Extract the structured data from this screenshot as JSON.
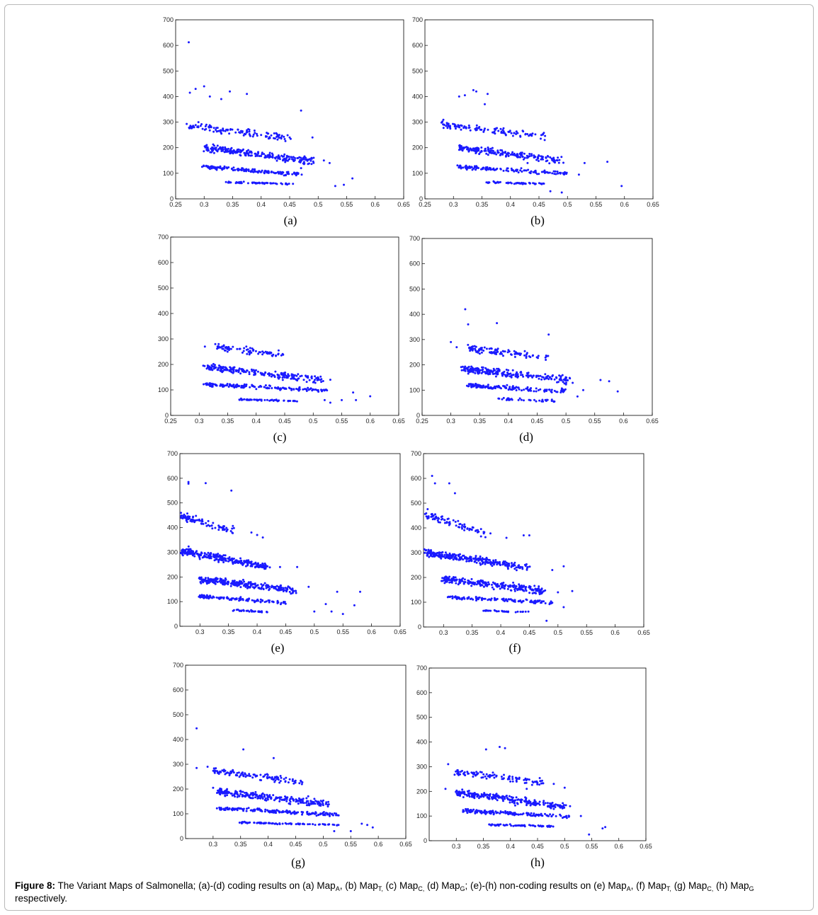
{
  "chart_data": [
    {
      "id": "a",
      "label": "(a)",
      "type": "scatter",
      "xlim": [
        0.25,
        0.65
      ],
      "ylim": [
        0,
        700
      ],
      "xticks": [
        "0.25",
        "0.3",
        "0.35",
        "0.4",
        "0.45",
        "0.5",
        "0.55",
        "0.6",
        "0.65"
      ],
      "yticks": [
        "0",
        "100",
        "200",
        "300",
        "400",
        "500",
        "600",
        "700"
      ],
      "bands": [
        {
          "x": [
            0.3,
            0.47
          ],
          "y": [
            125,
            95
          ],
          "n": 150,
          "spread": 7
        },
        {
          "x": [
            0.3,
            0.49
          ],
          "y": [
            200,
            145
          ],
          "n": 230,
          "spread": 14
        },
        {
          "x": [
            0.27,
            0.45
          ],
          "y": [
            285,
            240
          ],
          "n": 120,
          "spread": 13
        },
        {
          "x": [
            0.34,
            0.46
          ],
          "y": [
            65,
            58
          ],
          "n": 60,
          "spread": 3
        }
      ],
      "points": [
        [
          0.273,
          612
        ],
        [
          0.275,
          415
        ],
        [
          0.285,
          430
        ],
        [
          0.3,
          440
        ],
        [
          0.31,
          400
        ],
        [
          0.33,
          390
        ],
        [
          0.345,
          420
        ],
        [
          0.375,
          410
        ],
        [
          0.47,
          345
        ],
        [
          0.51,
          150
        ],
        [
          0.52,
          140
        ],
        [
          0.53,
          50
        ],
        [
          0.545,
          55
        ],
        [
          0.56,
          80
        ],
        [
          0.49,
          240
        ],
        [
          0.45,
          240
        ],
        [
          0.47,
          120
        ],
        [
          0.29,
          300
        ]
      ]
    },
    {
      "id": "b",
      "label": "(b)",
      "type": "scatter",
      "xlim": [
        0.25,
        0.65
      ],
      "ylim": [
        0,
        700
      ],
      "xticks": [
        "0.25",
        "0.3",
        "0.35",
        "0.4",
        "0.45",
        "0.5",
        "0.55",
        "0.6",
        "0.65"
      ],
      "yticks": [
        "0",
        "100",
        "200",
        "300",
        "400",
        "500",
        "600",
        "700"
      ],
      "bands": [
        {
          "x": [
            0.31,
            0.5
          ],
          "y": [
            125,
            98
          ],
          "n": 140,
          "spread": 7
        },
        {
          "x": [
            0.31,
            0.49
          ],
          "y": [
            200,
            150
          ],
          "n": 200,
          "spread": 13
        },
        {
          "x": [
            0.28,
            0.46
          ],
          "y": [
            290,
            245
          ],
          "n": 110,
          "spread": 13
        },
        {
          "x": [
            0.36,
            0.46
          ],
          "y": [
            65,
            58
          ],
          "n": 50,
          "spread": 3
        }
      ],
      "points": [
        [
          0.31,
          400
        ],
        [
          0.32,
          405
        ],
        [
          0.335,
          425
        ],
        [
          0.34,
          420
        ],
        [
          0.36,
          410
        ],
        [
          0.355,
          370
        ],
        [
          0.57,
          145
        ],
        [
          0.595,
          50
        ],
        [
          0.47,
          30
        ],
        [
          0.49,
          25
        ],
        [
          0.52,
          95
        ],
        [
          0.53,
          140
        ],
        [
          0.28,
          300
        ],
        [
          0.46,
          230
        ],
        [
          0.43,
          140
        ]
      ]
    },
    {
      "id": "c",
      "label": "(c)",
      "type": "scatter",
      "xlim": [
        0.25,
        0.65
      ],
      "ylim": [
        0,
        700
      ],
      "xticks": [
        "0.25",
        "0.3",
        "0.35",
        "0.4",
        "0.45",
        "0.5",
        "0.55",
        "0.6",
        "0.65"
      ],
      "yticks": [
        "0",
        "100",
        "200",
        "300",
        "400",
        "500",
        "600",
        "700"
      ],
      "bands": [
        {
          "x": [
            0.31,
            0.53
          ],
          "y": [
            122,
            97
          ],
          "n": 150,
          "spread": 7
        },
        {
          "x": [
            0.31,
            0.52
          ],
          "y": [
            190,
            140
          ],
          "n": 210,
          "spread": 14
        },
        {
          "x": [
            0.33,
            0.45
          ],
          "y": [
            270,
            235
          ],
          "n": 80,
          "spread": 12
        },
        {
          "x": [
            0.37,
            0.47
          ],
          "y": [
            63,
            57
          ],
          "n": 55,
          "spread": 3
        }
      ],
      "points": [
        [
          0.31,
          270
        ],
        [
          0.57,
          90
        ],
        [
          0.575,
          60
        ],
        [
          0.55,
          60
        ],
        [
          0.6,
          75
        ],
        [
          0.53,
          50
        ],
        [
          0.52,
          60
        ],
        [
          0.5,
          130
        ],
        [
          0.53,
          140
        ]
      ]
    },
    {
      "id": "d",
      "label": "(d)",
      "type": "scatter",
      "xlim": [
        0.25,
        0.65
      ],
      "ylim": [
        0,
        700
      ],
      "xticks": [
        "0.25",
        "0.3",
        "0.35",
        "0.4",
        "0.45",
        "0.5",
        "0.55",
        "0.6",
        "0.65"
      ],
      "yticks": [
        "0",
        "100",
        "200",
        "300",
        "400",
        "500",
        "600",
        "700"
      ],
      "bands": [
        {
          "x": [
            0.33,
            0.5
          ],
          "y": [
            118,
            95
          ],
          "n": 140,
          "spread": 8
        },
        {
          "x": [
            0.32,
            0.51
          ],
          "y": [
            185,
            140
          ],
          "n": 230,
          "spread": 15
        },
        {
          "x": [
            0.33,
            0.47
          ],
          "y": [
            265,
            230
          ],
          "n": 100,
          "spread": 14
        },
        {
          "x": [
            0.38,
            0.48
          ],
          "y": [
            65,
            58
          ],
          "n": 35,
          "spread": 5
        }
      ],
      "points": [
        [
          0.325,
          420
        ],
        [
          0.33,
          360
        ],
        [
          0.38,
          365
        ],
        [
          0.47,
          320
        ],
        [
          0.3,
          290
        ],
        [
          0.31,
          270
        ],
        [
          0.56,
          140
        ],
        [
          0.575,
          135
        ],
        [
          0.59,
          95
        ],
        [
          0.52,
          75
        ],
        [
          0.53,
          100
        ],
        [
          0.46,
          55
        ],
        [
          0.48,
          55
        ]
      ]
    },
    {
      "id": "e",
      "label": "(e)",
      "type": "scatter",
      "xlim": [
        0.265,
        0.65
      ],
      "ylim": [
        0,
        700
      ],
      "xticks": [
        "0.3",
        "0.35",
        "0.4",
        "0.45",
        "0.5",
        "0.55",
        "0.6",
        "0.65"
      ],
      "yticks": [
        "0",
        "100",
        "200",
        "300",
        "400",
        "500",
        "600",
        "700"
      ],
      "bands": [
        {
          "x": [
            0.3,
            0.45
          ],
          "y": [
            122,
            95
          ],
          "n": 110,
          "spread": 7
        },
        {
          "x": [
            0.3,
            0.47
          ],
          "y": [
            190,
            145
          ],
          "n": 260,
          "spread": 14
        },
        {
          "x": [
            0.27,
            0.42
          ],
          "y": [
            305,
            240
          ],
          "n": 280,
          "spread": 15
        },
        {
          "x": [
            0.27,
            0.36
          ],
          "y": [
            445,
            385
          ],
          "n": 90,
          "spread": 15
        },
        {
          "x": [
            0.36,
            0.42
          ],
          "y": [
            65,
            58
          ],
          "n": 35,
          "spread": 3
        }
      ],
      "points": [
        [
          0.28,
          585
        ],
        [
          0.28,
          578
        ],
        [
          0.31,
          580
        ],
        [
          0.355,
          550
        ],
        [
          0.267,
          460
        ],
        [
          0.27,
          440
        ],
        [
          0.39,
          380
        ],
        [
          0.4,
          370
        ],
        [
          0.41,
          360
        ],
        [
          0.58,
          140
        ],
        [
          0.57,
          85
        ],
        [
          0.54,
          140
        ],
        [
          0.52,
          90
        ],
        [
          0.53,
          60
        ],
        [
          0.5,
          60
        ],
        [
          0.47,
          240
        ],
        [
          0.44,
          240
        ],
        [
          0.49,
          160
        ],
        [
          0.55,
          50
        ]
      ]
    },
    {
      "id": "f",
      "label": "(f)",
      "type": "scatter",
      "xlim": [
        0.265,
        0.65
      ],
      "ylim": [
        0,
        700
      ],
      "xticks": [
        "0.3",
        "0.35",
        "0.4",
        "0.45",
        "0.5",
        "0.55",
        "0.6",
        "0.65"
      ],
      "yticks": [
        "0",
        "100",
        "200",
        "300",
        "400",
        "500",
        "600",
        "700"
      ],
      "bands": [
        {
          "x": [
            0.31,
            0.49
          ],
          "y": [
            122,
            98
          ],
          "n": 120,
          "spread": 7
        },
        {
          "x": [
            0.3,
            0.48
          ],
          "y": [
            195,
            145
          ],
          "n": 250,
          "spread": 14
        },
        {
          "x": [
            0.27,
            0.45
          ],
          "y": [
            300,
            240
          ],
          "n": 270,
          "spread": 14
        },
        {
          "x": [
            0.27,
            0.38
          ],
          "y": [
            455,
            370
          ],
          "n": 80,
          "spread": 15
        },
        {
          "x": [
            0.37,
            0.45
          ],
          "y": [
            66,
            60
          ],
          "n": 30,
          "spread": 3
        }
      ],
      "points": [
        [
          0.28,
          610
        ],
        [
          0.285,
          580
        ],
        [
          0.31,
          580
        ],
        [
          0.32,
          540
        ],
        [
          0.44,
          370
        ],
        [
          0.45,
          370
        ],
        [
          0.41,
          360
        ],
        [
          0.48,
          25
        ],
        [
          0.51,
          80
        ],
        [
          0.525,
          145
        ],
        [
          0.51,
          245
        ],
        [
          0.49,
          230
        ],
        [
          0.5,
          140
        ],
        [
          0.27,
          310
        ]
      ]
    },
    {
      "id": "g",
      "label": "(g)",
      "type": "scatter",
      "xlim": [
        0.25,
        0.65
      ],
      "ylim": [
        0,
        700
      ],
      "xticks": [
        "0.3",
        "0.35",
        "0.4",
        "0.45",
        "0.5",
        "0.55",
        "0.6",
        "0.65"
      ],
      "yticks": [
        "0",
        "100",
        "200",
        "300",
        "400",
        "500",
        "600",
        "700"
      ],
      "bands": [
        {
          "x": [
            0.31,
            0.53
          ],
          "y": [
            122,
            95
          ],
          "n": 160,
          "spread": 7
        },
        {
          "x": [
            0.31,
            0.51
          ],
          "y": [
            190,
            140
          ],
          "n": 240,
          "spread": 14
        },
        {
          "x": [
            0.3,
            0.46
          ],
          "y": [
            275,
            230
          ],
          "n": 110,
          "spread": 13
        },
        {
          "x": [
            0.35,
            0.53
          ],
          "y": [
            65,
            55
          ],
          "n": 80,
          "spread": 3
        }
      ],
      "points": [
        [
          0.27,
          445
        ],
        [
          0.27,
          285
        ],
        [
          0.355,
          360
        ],
        [
          0.41,
          325
        ],
        [
          0.3,
          205
        ],
        [
          0.29,
          290
        ],
        [
          0.59,
          45
        ],
        [
          0.57,
          60
        ],
        [
          0.58,
          55
        ],
        [
          0.52,
          30
        ],
        [
          0.55,
          30
        ],
        [
          0.49,
          140
        ],
        [
          0.5,
          135
        ],
        [
          0.46,
          230
        ]
      ]
    },
    {
      "id": "h",
      "label": "(h)",
      "type": "scatter",
      "xlim": [
        0.25,
        0.65
      ],
      "ylim": [
        0,
        700
      ],
      "xticks": [
        "0.3",
        "0.35",
        "0.4",
        "0.45",
        "0.5",
        "0.55",
        "0.6",
        "0.65"
      ],
      "yticks": [
        "0",
        "100",
        "200",
        "300",
        "400",
        "500",
        "600",
        "700"
      ],
      "bands": [
        {
          "x": [
            0.31,
            0.51
          ],
          "y": [
            122,
            98
          ],
          "n": 150,
          "spread": 7
        },
        {
          "x": [
            0.3,
            0.5
          ],
          "y": [
            195,
            140
          ],
          "n": 240,
          "spread": 14
        },
        {
          "x": [
            0.3,
            0.46
          ],
          "y": [
            280,
            235
          ],
          "n": 110,
          "spread": 13
        },
        {
          "x": [
            0.36,
            0.48
          ],
          "y": [
            65,
            58
          ],
          "n": 60,
          "spread": 3
        }
      ],
      "points": [
        [
          0.285,
          310
        ],
        [
          0.28,
          210
        ],
        [
          0.355,
          370
        ],
        [
          0.38,
          380
        ],
        [
          0.39,
          375
        ],
        [
          0.5,
          215
        ],
        [
          0.57,
          50
        ],
        [
          0.575,
          55
        ],
        [
          0.545,
          25
        ],
        [
          0.53,
          100
        ],
        [
          0.51,
          140
        ],
        [
          0.48,
          230
        ],
        [
          0.43,
          210
        ]
      ]
    }
  ],
  "caption": {
    "figure_label": "Figure 8:",
    "segments": [
      {
        "t": " The Variant Maps of Salmonella; (a)-(d) coding results on (a) Map"
      },
      {
        "sub": "A"
      },
      {
        "t": ", (b) Map"
      },
      {
        "sub": "T,"
      },
      {
        "t": " (c) Map"
      },
      {
        "sub": "C,"
      },
      {
        "t": " (d) Map"
      },
      {
        "sub": "G"
      },
      {
        "t": "; (e)-(h) non-coding results on (e) Map"
      },
      {
        "sub": "A"
      },
      {
        "t": ", (f) Map"
      },
      {
        "sub": "T,"
      },
      {
        "t": " (g) Map"
      },
      {
        "sub": "C,"
      },
      {
        "t": " (h) Map"
      },
      {
        "sub": "G"
      },
      {
        "t": " respectively."
      }
    ]
  },
  "colors": {
    "marker": "#1a1aff",
    "axes": "#000000",
    "frame": "#b9b9b9"
  }
}
